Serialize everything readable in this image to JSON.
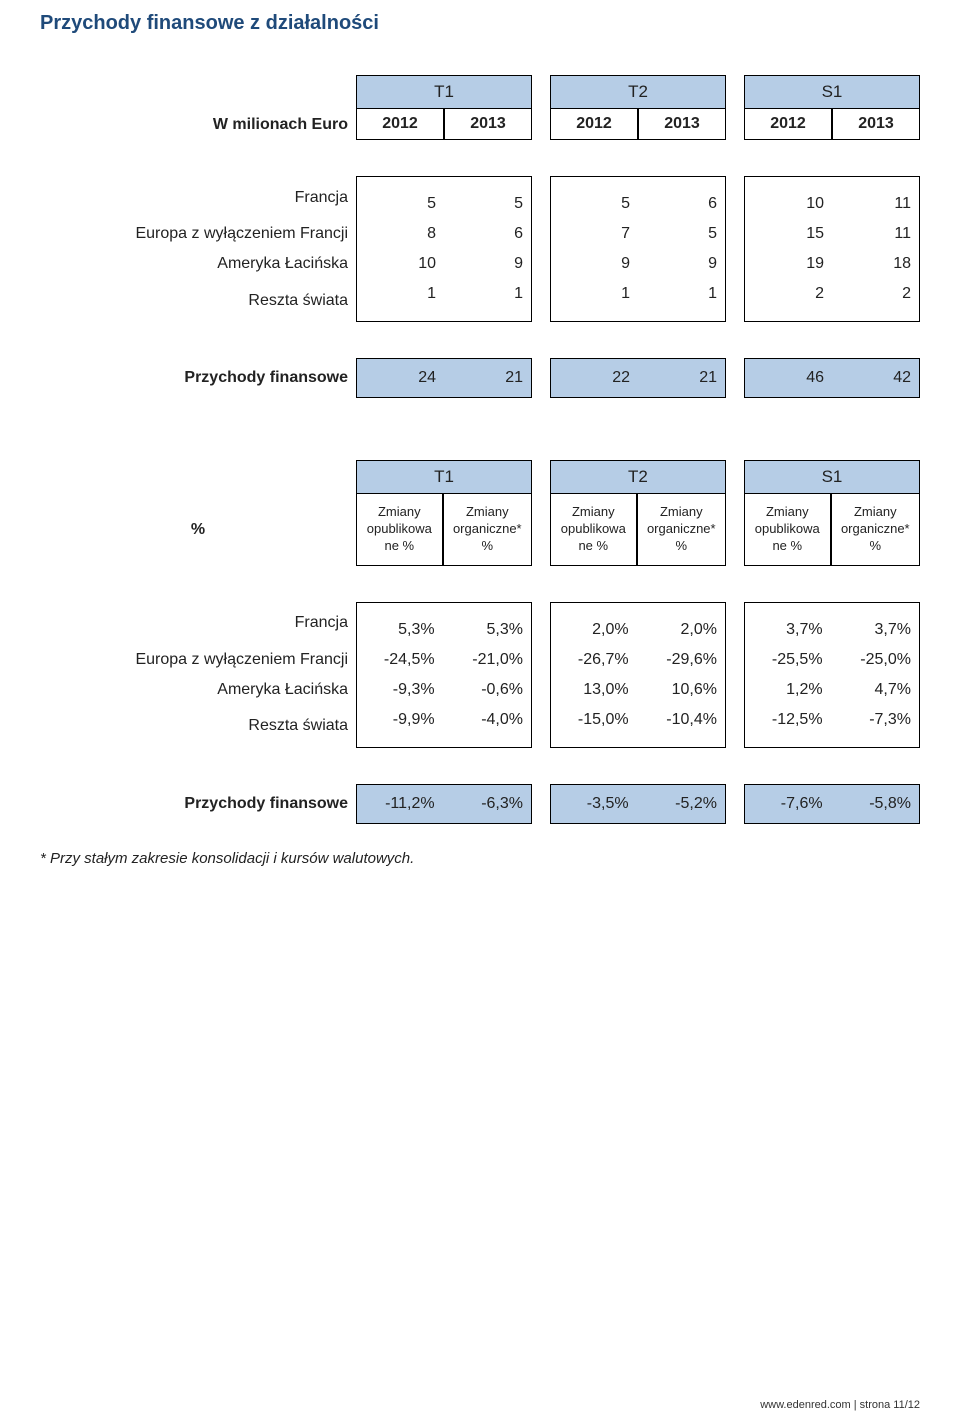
{
  "colors": {
    "navy": "#1f4a7a",
    "header_fill": "#b6cde6",
    "border": "#000000",
    "background": "#ffffff",
    "text": "#222222"
  },
  "title": "Przychody finansowe z działalności",
  "groups": [
    "T1",
    "T2",
    "S1"
  ],
  "table1": {
    "row_header": "W milionach Euro",
    "sub_headers": [
      "2012",
      "2013",
      "2012",
      "2013",
      "2012",
      "2013"
    ],
    "rows": [
      {
        "label": "Francja",
        "v": [
          "5",
          "5",
          "5",
          "6",
          "10",
          "11"
        ]
      },
      {
        "label": "Europa z wyłączeniem Francji",
        "v": [
          "8",
          "6",
          "7",
          "5",
          "15",
          "11"
        ]
      },
      {
        "label": "Ameryka Łacińska",
        "v": [
          "10",
          "9",
          "9",
          "9",
          "19",
          "18"
        ]
      },
      {
        "label": "Reszta świata",
        "v": [
          "1",
          "1",
          "1",
          "1",
          "2",
          "2"
        ]
      }
    ],
    "summary": {
      "label": "Przychody finansowe",
      "v": [
        "24",
        "21",
        "22",
        "21",
        "46",
        "42"
      ]
    }
  },
  "table2": {
    "row_header": "%",
    "sub_a": "Zmiany opublikowa ne %",
    "sub_b": "Zmiany organiczne* %",
    "rows": [
      {
        "label": "Francja",
        "v": [
          "5,3%",
          "5,3%",
          "2,0%",
          "2,0%",
          "3,7%",
          "3,7%"
        ]
      },
      {
        "label": "Europa z wyłączeniem Francji",
        "v": [
          "-24,5%",
          "-21,0%",
          "-26,7%",
          "-29,6%",
          "-25,5%",
          "-25,0%"
        ]
      },
      {
        "label": "Ameryka Łacińska",
        "v": [
          "-9,3%",
          "-0,6%",
          "13,0%",
          "10,6%",
          "1,2%",
          "4,7%"
        ]
      },
      {
        "label": "Reszta świata",
        "v": [
          "-9,9%",
          "-4,0%",
          "-15,0%",
          "-10,4%",
          "-12,5%",
          "-7,3%"
        ]
      }
    ],
    "summary": {
      "label": "Przychody finansowe",
      "v": [
        "-11,2%",
        "-6,3%",
        "-3,5%",
        "-5,2%",
        "-7,6%",
        "-5,8%"
      ]
    }
  },
  "footnote": "* Przy stałym zakresie konsolidacji i kursów walutowych.",
  "footer": "www.edenred.com | strona 11/12"
}
